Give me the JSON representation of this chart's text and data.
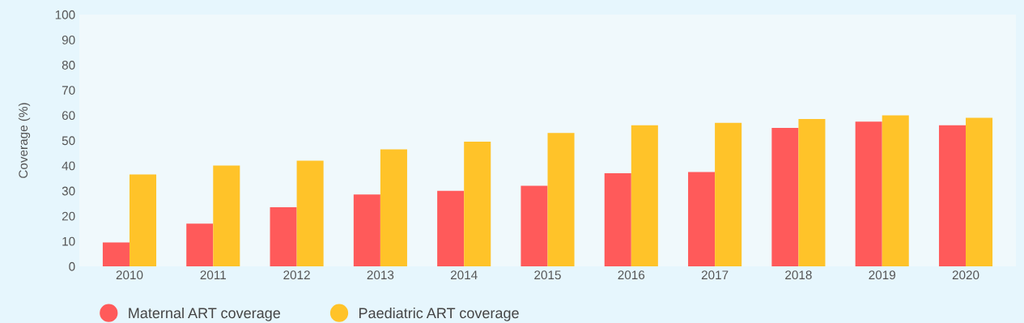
{
  "chart_data": {
    "type": "bar",
    "ylabel": "Coverage (%)",
    "categories": [
      "2010",
      "2011",
      "2012",
      "2013",
      "2014",
      "2015",
      "2016",
      "2017",
      "2018",
      "2019",
      "2020"
    ],
    "series": [
      {
        "name": "Maternal ART coverage",
        "color": "#ff5a5a",
        "values": [
          9.5,
          17,
          23.5,
          28.5,
          30,
          32,
          37,
          37.5,
          55,
          57.5,
          56
        ]
      },
      {
        "name": "Paediatric ART coverage",
        "color": "#ffc329",
        "values": [
          36.5,
          40,
          42,
          46.5,
          49.5,
          53,
          56,
          57,
          58.5,
          60,
          59
        ]
      }
    ],
    "ylim": [
      0,
      100
    ],
    "yticks": [
      0,
      10,
      20,
      30,
      40,
      50,
      60,
      70,
      80,
      90,
      100
    ],
    "grid": false,
    "legend": "bottom"
  }
}
